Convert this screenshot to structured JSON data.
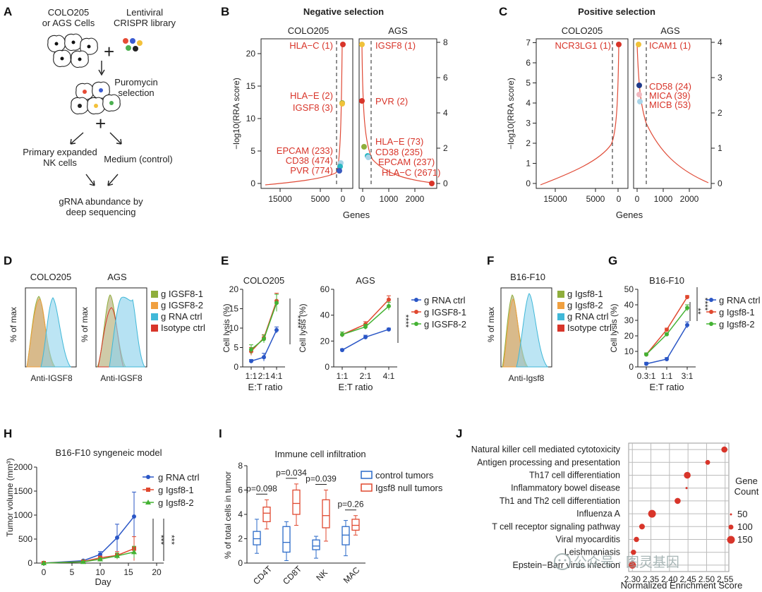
{
  "colors": {
    "blue": "#2a56c6",
    "red": "#d8352a",
    "green": "#44b233",
    "orange": "#f0a040",
    "teal": "#40b8d8",
    "olive": "#8fae3c",
    "curve": "#e04a36",
    "grid": "#bbbbbb"
  },
  "panels": {
    "A": "A",
    "B": "B",
    "C": "C",
    "D": "D",
    "E": "E",
    "F": "F",
    "G": "G",
    "H": "H",
    "I": "I",
    "J": "J"
  },
  "panelA": {
    "cells": "COLO205\nor AGS Cells",
    "library": "Lentiviral\nCRISPR library",
    "puromycin": "Puromycin\nselection",
    "nk": "Primary expanded\nNK cells",
    "medium": "Medium (control)",
    "gRNA": "gRNA abundance by\ndeep sequencing",
    "plus1": "+",
    "plus2": "+"
  },
  "panelB": {
    "title": "Negative selection",
    "left_sub": "COLO205",
    "right_sub": "AGS",
    "ylabel": "−log10(RRA score)",
    "xlabel": "Genes",
    "left_yticks": [
      "0",
      "5",
      "10",
      "15",
      "20"
    ],
    "right_yticks": [
      "0",
      "2",
      "4",
      "6",
      "8"
    ],
    "left_xticks": [
      "15000",
      "5000",
      "0"
    ],
    "right_xticks": [
      "0",
      "1000",
      "2000"
    ],
    "left_labels": [
      {
        "text": "HLA−C (1)"
      },
      {
        "text": "HLA−E (2)"
      },
      {
        "text": "IGSF8 (3)"
      },
      {
        "text": "EPCAM (233)"
      },
      {
        "text": "CD38 (474)"
      },
      {
        "text": "PVR (774)"
      }
    ],
    "right_labels": [
      {
        "text": "IGSF8 (1)"
      },
      {
        "text": "PVR (2)"
      },
      {
        "text": "HLA−E (73)"
      },
      {
        "text": "CD38 (235)"
      },
      {
        "text": "EPCAM (237)"
      },
      {
        "text": "HLA−C (2671)"
      }
    ]
  },
  "panelC": {
    "title": "Positive selection",
    "left_sub": "COLO205",
    "right_sub": "AGS",
    "ylabel": "−log10(RRA score)",
    "xlabel": "Genes",
    "left_yticks": [
      "0",
      "1",
      "2",
      "3",
      "4",
      "5",
      "6",
      "7"
    ],
    "right_yticks": [
      "0",
      "1",
      "2",
      "3",
      "4"
    ],
    "left_xticks": [
      "15000",
      "5000",
      "0"
    ],
    "right_xticks": [
      "0",
      "1000",
      "2000"
    ],
    "left_labels": [
      {
        "text": "NCR3LG1 (1)"
      }
    ],
    "right_labels": [
      {
        "text": "ICAM1 (1)"
      },
      {
        "text": "CD58 (24)"
      },
      {
        "text": "MICA (39)"
      },
      {
        "text": "MICB (53)"
      }
    ]
  },
  "panelD": {
    "sub1": "COLO205",
    "sub2": "AGS",
    "ylabel": "% of max",
    "xlabel": "Anti-IGSF8",
    "legend": [
      "g IGSF8-1",
      "g IGSF8-2",
      "g RNA ctrl",
      "Isotype ctrl"
    ]
  },
  "panelF": {
    "sub1": "B16-F10",
    "ylabel": "% of max",
    "xlabel": "Anti-Igsf8",
    "legend": [
      "g Igsf8-1",
      "g Igsf8-2",
      "g RNA ctrl",
      "Isotype ctrl"
    ]
  },
  "panelE": {
    "ylabel": "Cell lysis (%)",
    "xlabel": "E:T ratio",
    "legend": [
      "g RNA ctrl",
      "g IGSF8-1",
      "g IGSF8-2"
    ],
    "sig": "****"
  },
  "panelG": {
    "ylabel": "Cell lysis (%)",
    "xlabel": "E:T ratio",
    "legend": [
      "g RNA ctrl",
      "g Igsf8-1",
      "g Igsf8-2"
    ],
    "sig1": "****",
    "sig2": "**"
  },
  "panelH": {
    "ylabel": "Tumor volume (mm³)",
    "xlabel": "Day",
    "legend": [
      "g RNA ctrl",
      "g Igsf8-1",
      "g Igsf8-2"
    ],
    "sig1": "***",
    "sig2": "***"
  },
  "panelI": {
    "ylabel": "% of total cells in tumor",
    "legend": [
      "control tumors",
      "Igsf8 null tumors"
    ]
  },
  "panelJ": {
    "xlabel": "Normalized Enrichment Score",
    "legend_title": "Gene\nCount",
    "legend_sizes": [
      "50",
      "100",
      "150"
    ]
  },
  "watermark": "公众号 · 图灵基因",
  "chart_data": [
    {
      "type": "line",
      "panel": "E",
      "title": "COLO205",
      "categories": [
        "1:1",
        "2:1",
        "4:1"
      ],
      "ylim": [
        0,
        20
      ],
      "yticks": [
        0,
        5,
        10,
        15,
        20
      ],
      "series": [
        {
          "name": "g RNA ctrl",
          "values": [
            1.5,
            2.5,
            9.5
          ],
          "err": [
            0.4,
            1.0,
            0.8
          ]
        },
        {
          "name": "g IGSF8-1",
          "values": [
            4.0,
            7.5,
            17.0
          ],
          "err": [
            1.0,
            0.8,
            2.0
          ]
        },
        {
          "name": "g IGSF8-2",
          "values": [
            4.5,
            7.2,
            16.5
          ],
          "err": [
            1.2,
            1.0,
            2.2
          ]
        }
      ]
    },
    {
      "type": "line",
      "panel": "E",
      "title": "AGS",
      "categories": [
        "1:1",
        "2:1",
        "4:1"
      ],
      "ylim": [
        0,
        60
      ],
      "yticks": [
        0,
        20,
        40,
        60
      ],
      "series": [
        {
          "name": "g RNA ctrl",
          "values": [
            13,
            23,
            29
          ],
          "err": [
            1,
            1.5,
            1
          ]
        },
        {
          "name": "g IGSF8-1",
          "values": [
            25,
            33,
            52
          ],
          "err": [
            2,
            2,
            3
          ]
        },
        {
          "name": "g IGSF8-2",
          "values": [
            25,
            31,
            47
          ],
          "err": [
            2,
            2,
            3
          ]
        }
      ]
    },
    {
      "type": "line",
      "panel": "G",
      "title": "B16-F10",
      "categories": [
        "0.3:1",
        "1:1",
        "3:1"
      ],
      "ylim": [
        0,
        50
      ],
      "yticks": [
        0,
        10,
        20,
        30,
        40,
        50
      ],
      "series": [
        {
          "name": "g RNA ctrl",
          "values": [
            2,
            5,
            27
          ],
          "err": [
            1,
            1,
            2
          ]
        },
        {
          "name": "g Igsf8-1",
          "values": [
            8,
            24,
            45
          ],
          "err": [
            1,
            1,
            1
          ]
        },
        {
          "name": "g Igsf8-2",
          "values": [
            8,
            21,
            38
          ],
          "err": [
            1,
            1,
            2
          ]
        }
      ]
    },
    {
      "type": "line",
      "panel": "H",
      "title": "B16-F10 syngeneic model",
      "x": [
        0,
        7,
        10,
        13,
        16
      ],
      "xlim": [
        0,
        20
      ],
      "xticks": [
        0,
        5,
        10,
        15,
        20
      ],
      "ylim": [
        0,
        2000
      ],
      "yticks": [
        0,
        500,
        1000,
        1500,
        2000
      ],
      "series": [
        {
          "name": "g RNA ctrl",
          "values": [
            0,
            50,
            180,
            530,
            970
          ],
          "err": [
            0,
            15,
            60,
            280,
            510
          ]
        },
        {
          "name": "g Igsf8-1",
          "values": [
            0,
            30,
            110,
            160,
            300
          ],
          "err": [
            0,
            10,
            30,
            80,
            250
          ]
        },
        {
          "name": "g Igsf8-2",
          "values": [
            0,
            25,
            80,
            150,
            230
          ],
          "err": [
            0,
            10,
            25,
            60,
            120
          ]
        }
      ]
    },
    {
      "type": "box",
      "panel": "I",
      "title": "Immune cell infiltration",
      "categories": [
        "CD4T",
        "CD8T",
        "NK",
        "MAC"
      ],
      "ylim": [
        0,
        8
      ],
      "yticks": [
        0,
        2,
        4,
        6,
        8
      ],
      "pvalues": [
        "p=0.098",
        "p=0.034",
        "p=0.039",
        "p=0.26"
      ],
      "series": [
        {
          "name": "control tumors",
          "boxes": [
            [
              0.8,
              1.5,
              2.0,
              2.6,
              3.6
            ],
            [
              0.2,
              0.9,
              1.7,
              3.0,
              3.4
            ],
            [
              0.4,
              1.1,
              1.4,
              1.9,
              2.2
            ],
            [
              0.6,
              1.5,
              2.3,
              3.0,
              3.5
            ]
          ]
        },
        {
          "name": "Igsf8 null tumors",
          "boxes": [
            [
              2.8,
              3.4,
              4.1,
              4.6,
              5.2
            ],
            [
              3.1,
              4.0,
              4.9,
              6.0,
              6.5
            ],
            [
              1.8,
              2.9,
              3.9,
              5.2,
              6.0
            ],
            [
              2.3,
              2.7,
              3.1,
              3.6,
              3.9
            ]
          ]
        }
      ]
    },
    {
      "type": "scatter",
      "panel": "J",
      "xlim": [
        2.29,
        2.56
      ],
      "xticks": [
        2.3,
        2.35,
        2.4,
        2.45,
        2.5,
        2.55
      ],
      "pathways": [
        "Natural killer cell mediated cytotoxicity",
        "Antigen processing and presentation",
        "Th17 cell differentiation",
        "Inflammatory bowel disease",
        "Th1 and Th2 cell differentiation",
        "Influenza A",
        "T cell receptor signaling pathway",
        "Viral myocarditis",
        "Leishmaniasis",
        "Epstein−Barr virus infection"
      ],
      "nes": [
        2.548,
        2.503,
        2.448,
        2.446,
        2.422,
        2.353,
        2.326,
        2.311,
        2.303,
        2.3
      ],
      "count": [
        80,
        50,
        100,
        10,
        80,
        130,
        70,
        60,
        60,
        110
      ]
    },
    {
      "type": "line",
      "panel": "B",
      "subpanel": "COLO205",
      "ylim": [
        0,
        22
      ],
      "points": [
        {
          "gene": "HLA−C",
          "y": 21.5
        },
        {
          "gene": "HLA−E",
          "y": 12.6
        },
        {
          "gene": "IGSF8",
          "y": 12.4
        },
        {
          "gene": "EPCAM",
          "y": 3.2
        },
        {
          "gene": "CD38",
          "y": 2.7
        },
        {
          "gene": "PVR",
          "y": 2.0
        }
      ]
    },
    {
      "type": "line",
      "panel": "B",
      "subpanel": "AGS",
      "ylim": [
        0,
        8
      ],
      "points": [
        {
          "gene": "IGSF8",
          "y": 7.9
        },
        {
          "gene": "PVR",
          "y": 4.6
        },
        {
          "gene": "HLA−E",
          "y": 2.1
        },
        {
          "gene": "CD38",
          "y": 1.4
        },
        {
          "gene": "EPCAM",
          "y": 1.3
        },
        {
          "gene": "HLA−C",
          "y": 0.0
        }
      ]
    },
    {
      "type": "line",
      "panel": "C",
      "subpanel": "COLO205",
      "ylim": [
        0,
        7.3
      ],
      "points": [
        {
          "gene": "NCR3LG1",
          "y": 6.95
        }
      ]
    },
    {
      "type": "line",
      "panel": "C",
      "subpanel": "AGS",
      "ylim": [
        0,
        4.1
      ],
      "points": [
        {
          "gene": "ICAM1",
          "y": 3.95
        },
        {
          "gene": "CD58",
          "y": 2.8
        },
        {
          "gene": "MICA",
          "y": 2.5
        },
        {
          "gene": "MICB",
          "y": 2.3
        }
      ]
    }
  ]
}
